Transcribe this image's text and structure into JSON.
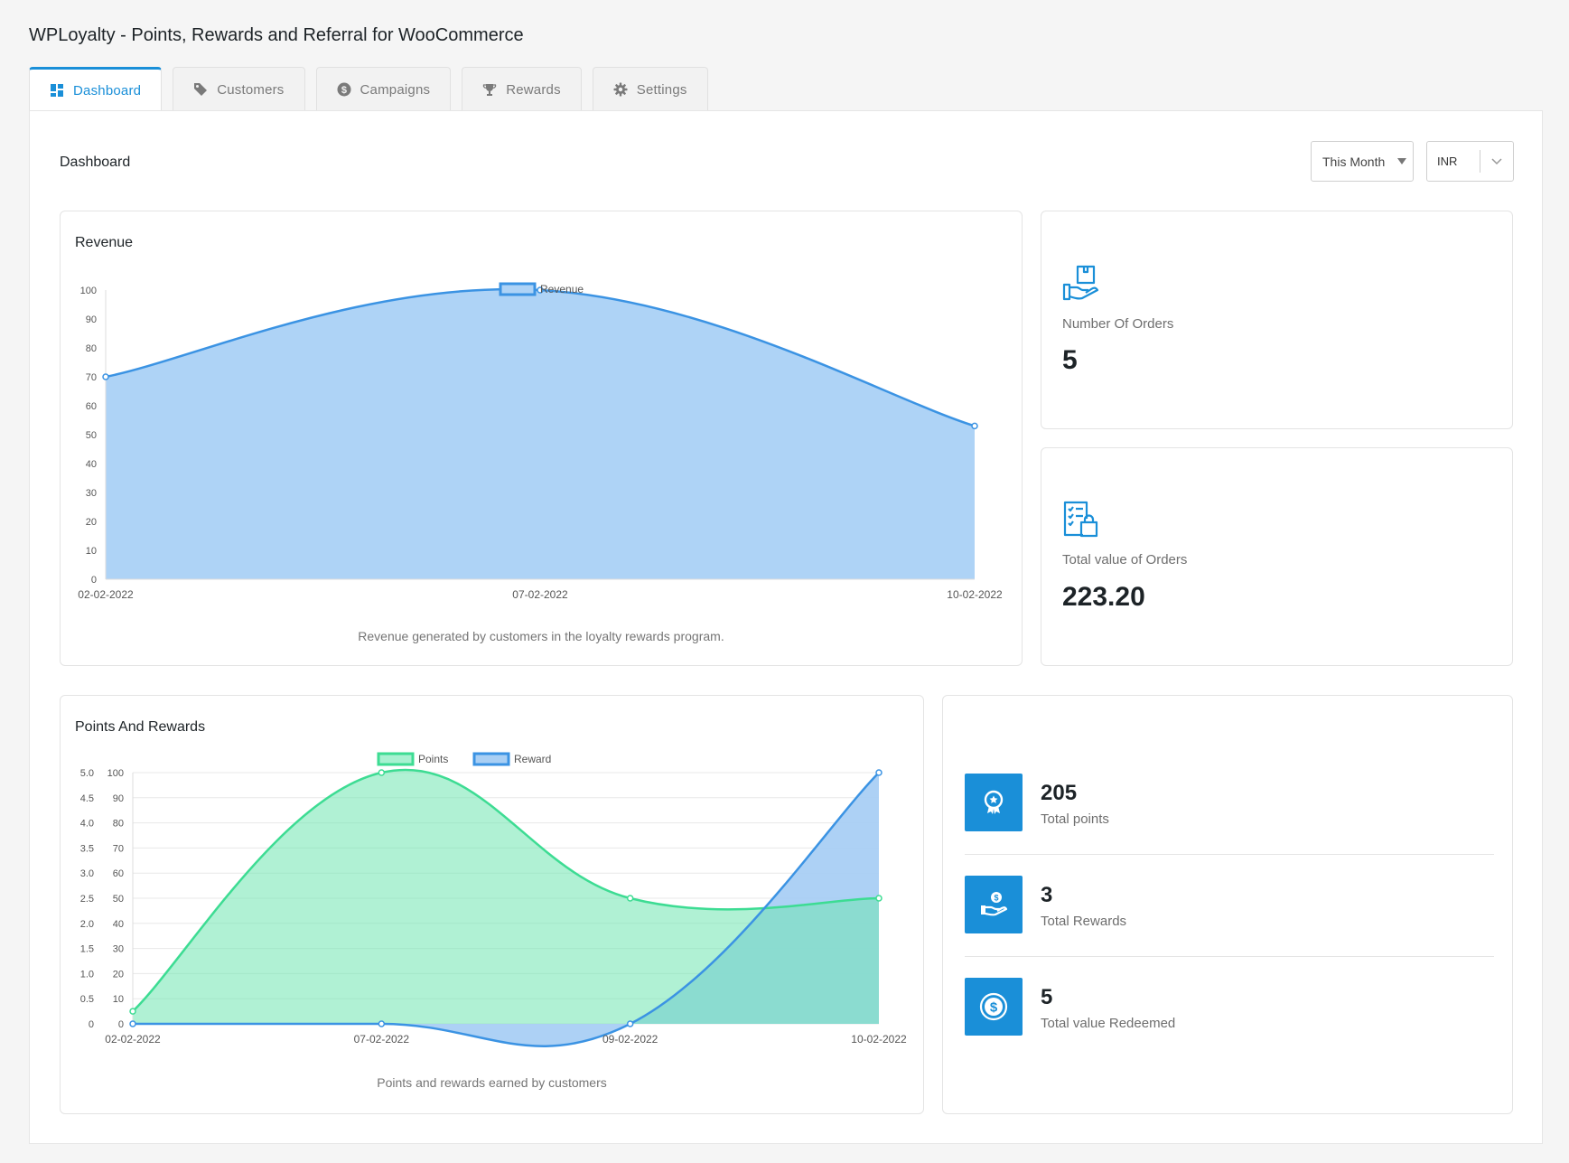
{
  "app_title": "WPLoyalty - Points, Rewards and Referral for WooCommerce",
  "tabs": [
    {
      "label": "Dashboard",
      "icon": "dashboard-icon",
      "active": true
    },
    {
      "label": "Customers",
      "icon": "tag-icon"
    },
    {
      "label": "Campaigns",
      "icon": "dollar-circle-icon"
    },
    {
      "label": "Rewards",
      "icon": "trophy-icon"
    },
    {
      "label": "Settings",
      "icon": "gear-icon"
    }
  ],
  "dashboard": {
    "title": "Dashboard",
    "period_select": "This Month",
    "currency_select": "INR"
  },
  "revenue_card": {
    "title": "Revenue",
    "caption": "Revenue generated by customers in the loyalty rewards program."
  },
  "orders_card": {
    "label": "Number Of Orders",
    "value": "5",
    "icon": "order-hand-icon"
  },
  "order_value_card": {
    "label": "Total value of Orders",
    "value": "223.20",
    "icon": "order-list-bag-icon"
  },
  "points_card": {
    "title": "Points And Rewards",
    "caption": "Points and rewards earned by customers"
  },
  "summary": [
    {
      "value": "205",
      "label": "Total points",
      "icon": "award-badge-icon"
    },
    {
      "value": "3",
      "label": "Total Rewards",
      "icon": "hand-coin-icon"
    },
    {
      "value": "5",
      "label": "Total value Redeemed",
      "icon": "dollar-coin-icon"
    }
  ],
  "colors": {
    "accent": "#1a8fd8",
    "revenue_line": "#3b93e3",
    "revenue_fill": "#aed3f6",
    "points_line": "#3ddc93",
    "points_fill": "#a8f1d1",
    "reward_fill": "#a9cff4"
  },
  "chart_data": [
    {
      "type": "area",
      "title": "Revenue",
      "x": [
        "02-02-2022",
        "07-02-2022",
        "10-02-2022"
      ],
      "series": [
        {
          "name": "Revenue",
          "values": [
            70,
            100,
            53
          ]
        }
      ],
      "ylim": [
        0,
        100
      ],
      "yticks": [
        0,
        10,
        20,
        30,
        40,
        50,
        60,
        70,
        80,
        90,
        100
      ],
      "legend": "top-center",
      "grid": false
    },
    {
      "type": "area",
      "title": "Points And Rewards",
      "x": [
        "02-02-2022",
        "07-02-2022",
        "09-02-2022",
        "10-02-2022"
      ],
      "series": [
        {
          "name": "Points",
          "values": [
            5,
            100,
            50,
            50
          ],
          "axis": "right"
        },
        {
          "name": "Reward",
          "values": [
            0,
            0,
            0,
            5
          ],
          "axis": "left"
        }
      ],
      "y_left_ticks": [
        "0",
        "0.5",
        "1.0",
        "1.5",
        "2.0",
        "2.5",
        "3.0",
        "3.5",
        "4.0",
        "4.5",
        "5.0"
      ],
      "y_right_ticks": [
        "0",
        "10",
        "20",
        "30",
        "40",
        "50",
        "60",
        "70",
        "80",
        "90",
        "100"
      ],
      "y_left_lim": [
        0,
        5
      ],
      "y_right_lim": [
        0,
        100
      ],
      "legend": "top-center",
      "grid": true
    }
  ]
}
